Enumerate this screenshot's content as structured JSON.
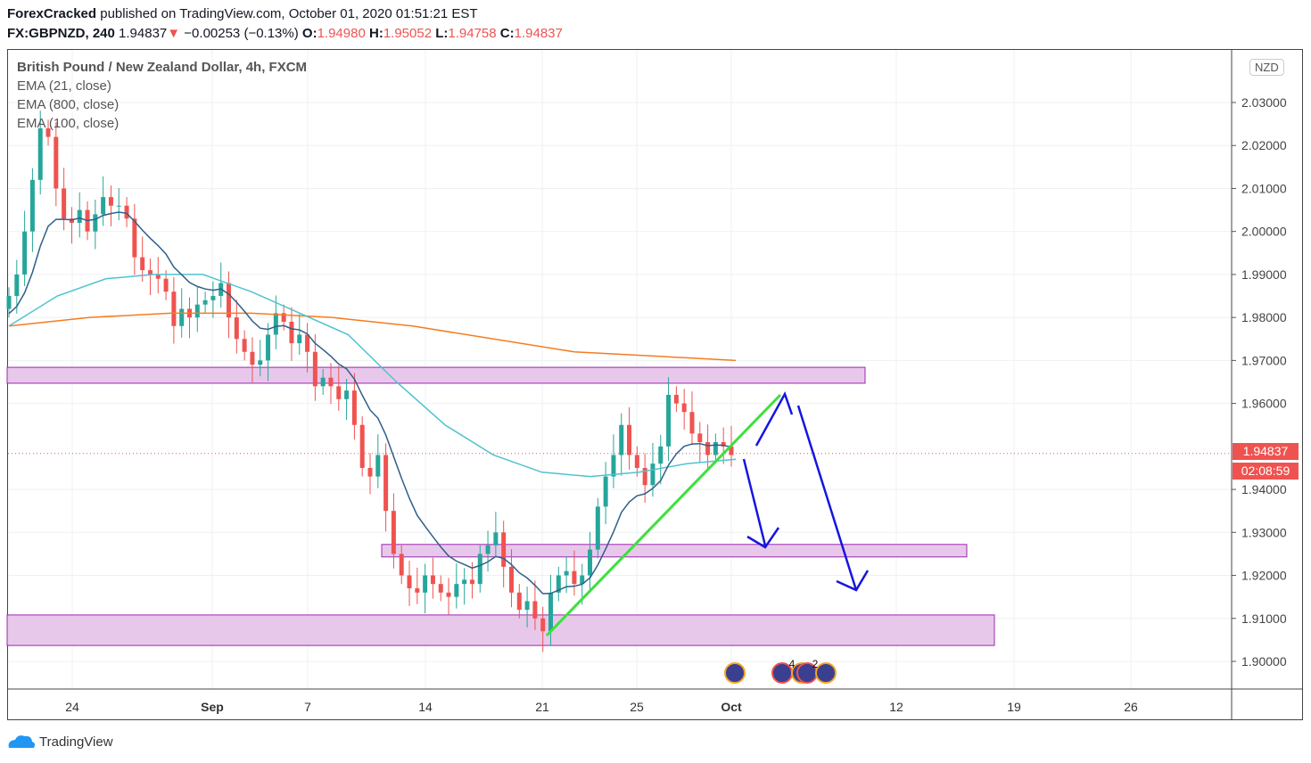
{
  "header": {
    "author": "ForexCracked",
    "published": "published on TradingView.com, October 01, 2020 01:51:21 EST",
    "symbol": "FX:GBPNZD, 240",
    "last": "1.94837",
    "arrow": "▼",
    "change": "−0.00253 (−0.13%)",
    "o_label": "O:",
    "o": "1.94980",
    "h_label": "H:",
    "h": "1.95052",
    "l_label": "L:",
    "l": "1.94758",
    "c_label": "C:",
    "c": "1.94837"
  },
  "legend": {
    "title": "British Pound / New Zealand Dollar, 4h, FXCM",
    "ema21": "EMA (21, close)",
    "ema800": "EMA (800, close)",
    "ema100": "EMA (100, close)"
  },
  "currency_badge": "NZD",
  "price_label": "1.94837",
  "countdown": "02:08:59",
  "footer": {
    "brand": "TradingView"
  },
  "event_badges": [
    "4",
    "2"
  ],
  "colors": {
    "up": "#26a69a",
    "down": "#ef5350",
    "ema21": "#2f5f8a",
    "ema100": "#4fc3d0",
    "ema800": "#f57c1f",
    "zone": "#e8c8ea",
    "zone_border": "#9c27b0",
    "trend": "#3ee03e",
    "arrow": "#1515e0"
  },
  "chart_data": {
    "type": "candlestick",
    "ylim": [
      1.895,
      2.04
    ],
    "y_ticks": [
      "2.03000",
      "2.02000",
      "2.01000",
      "2.00000",
      "1.99000",
      "1.98000",
      "1.97000",
      "1.96000",
      "1.94000",
      "1.93000",
      "1.92000",
      "1.91000",
      "1.90000"
    ],
    "x_ticks": [
      "24",
      "Sep",
      "7",
      "14",
      "21",
      "25",
      "Oct",
      "12",
      "19",
      "26"
    ],
    "closes": [
      1.985,
      1.99,
      2.0,
      2.012,
      2.024,
      2.022,
      2.01,
      2.003,
      2.002,
      2.005,
      2.0,
      2.004,
      2.008,
      2.006,
      2.006,
      2.003,
      1.994,
      1.991,
      1.99,
      1.989,
      1.986,
      1.978,
      1.982,
      1.98,
      1.983,
      1.984,
      1.985,
      1.988,
      1.98,
      1.975,
      1.972,
      1.969,
      1.97,
      1.976,
      1.981,
      1.979,
      1.974,
      1.976,
      1.972,
      1.964,
      1.966,
      1.964,
      1.961,
      1.963,
      1.955,
      1.945,
      1.943,
      1.948,
      1.935,
      1.925,
      1.92,
      1.917,
      1.916,
      1.92,
      1.918,
      1.916,
      1.915,
      1.918,
      1.919,
      1.918,
      1.925,
      1.927,
      1.93,
      1.922,
      1.916,
      1.912,
      1.914,
      1.91,
      1.907,
      1.916,
      1.92,
      1.921,
      1.918,
      1.92,
      1.926,
      1.936,
      1.943,
      1.948,
      1.955,
      1.948,
      1.945,
      1.941,
      1.946,
      1.95,
      1.962,
      1.96,
      1.958,
      1.953,
      1.951,
      1.948,
      1.951,
      1.95,
      1.948
    ],
    "ema100": [
      1.978,
      1.985,
      1.989,
      1.99,
      1.99,
      1.986,
      1.981,
      1.976,
      1.965,
      1.955,
      1.948,
      1.944,
      1.943,
      1.944,
      1.946,
      1.947
    ],
    "ema800": [
      1.978,
      1.98,
      1.981,
      1.981,
      1.98,
      1.978,
      1.975,
      1.972,
      1.971,
      1.97
    ],
    "zones": [
      [
        1.9647,
        1.9684
      ],
      [
        1.9243,
        1.9272
      ],
      [
        1.9037,
        1.9108
      ]
    ]
  }
}
